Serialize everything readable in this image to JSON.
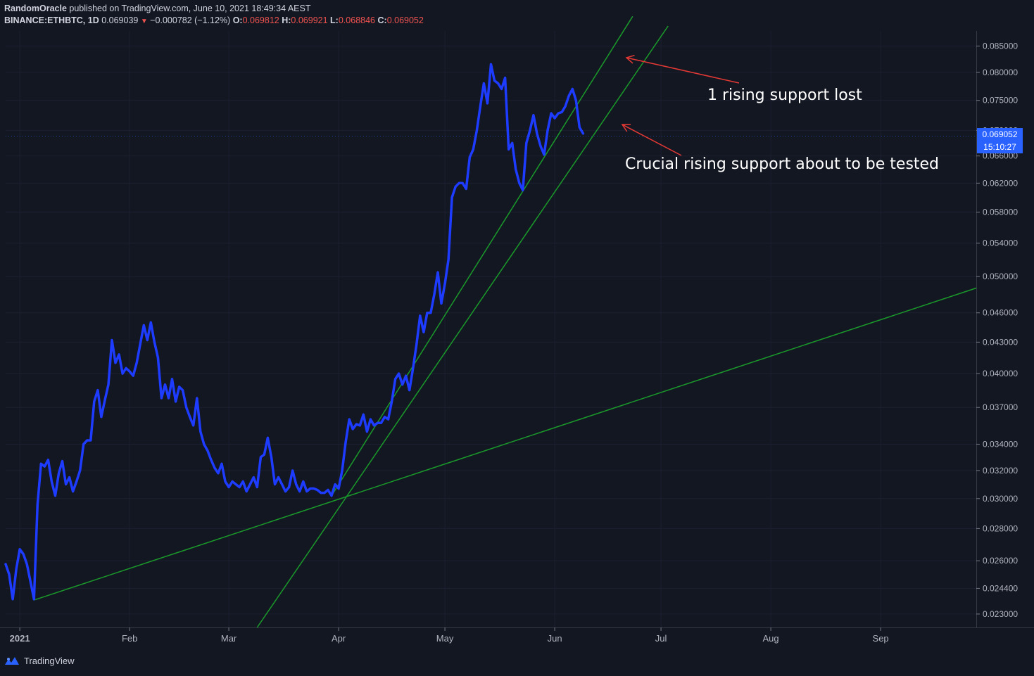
{
  "header": {
    "author": "RandomOracle",
    "published_text": "published on TradingView.com, June 10, 2021 18:49:34 AEST",
    "symbol": "BINANCE:ETHBTC, 1D",
    "last": "0.069039",
    "change": "−0.000782 (−1.12%)",
    "o_label": "O:",
    "o_val": "0.069812",
    "h_label": "H:",
    "h_val": "0.069921",
    "l_label": "L:",
    "l_val": "0.068846",
    "c_label": "C:",
    "c_val": "0.069052"
  },
  "price_tag": {
    "price": "0.069052",
    "countdown": "15:10:27"
  },
  "footer": {
    "brand": "TradingView"
  },
  "annotations": [
    {
      "text": "1 rising support lost"
    },
    {
      "text": "Crucial rising support about to be tested"
    }
  ],
  "colors": {
    "background": "#131722",
    "line": "#1e3cff",
    "trendline": "#1a9a2a",
    "arrow": "#e53935",
    "price_tag": "#2962ff"
  },
  "chart_data": {
    "type": "line",
    "title": "",
    "scale": "log",
    "x_ticks": [
      "2021",
      "Feb",
      "Mar",
      "Apr",
      "May",
      "Jun",
      "Jul",
      "Aug",
      "Sep"
    ],
    "y_ticks": [
      "0.085000",
      "0.080000",
      "0.075000",
      "0.070000",
      "0.066000",
      "0.062000",
      "0.058000",
      "0.054000",
      "0.050000",
      "0.046000",
      "0.043000",
      "0.040000",
      "0.037000",
      "0.034000",
      "0.032000",
      "0.030000",
      "0.028000",
      "0.026000",
      "0.024400",
      "0.023000"
    ],
    "ylim": [
      0.0223,
      0.088
    ],
    "xlim": [
      "2020-12-28",
      "2021-09-28"
    ],
    "series": [
      {
        "values": [
          [
            "2020-12-28",
            0.0258
          ],
          [
            "2020-12-29",
            0.0252
          ],
          [
            "2020-12-30",
            0.0238
          ],
          [
            "2020-12-31",
            0.0255
          ],
          [
            "2021-01-01",
            0.0267
          ],
          [
            "2021-01-02",
            0.0264
          ],
          [
            "2021-01-03",
            0.0258
          ],
          [
            "2021-01-04",
            0.0248
          ],
          [
            "2021-01-05",
            0.0238
          ],
          [
            "2021-01-06",
            0.0296
          ],
          [
            "2021-01-07",
            0.0325
          ],
          [
            "2021-01-08",
            0.0323
          ],
          [
            "2021-01-09",
            0.0328
          ],
          [
            "2021-01-10",
            0.0312
          ],
          [
            "2021-01-11",
            0.0302
          ],
          [
            "2021-01-12",
            0.0318
          ],
          [
            "2021-01-13",
            0.0327
          ],
          [
            "2021-01-14",
            0.031
          ],
          [
            "2021-01-15",
            0.0315
          ],
          [
            "2021-01-16",
            0.0305
          ],
          [
            "2021-01-17",
            0.0312
          ],
          [
            "2021-01-18",
            0.032
          ],
          [
            "2021-01-19",
            0.034
          ],
          [
            "2021-01-20",
            0.0343
          ],
          [
            "2021-01-21",
            0.0343
          ],
          [
            "2021-01-22",
            0.0375
          ],
          [
            "2021-01-23",
            0.0385
          ],
          [
            "2021-01-24",
            0.0362
          ],
          [
            "2021-01-25",
            0.0376
          ],
          [
            "2021-01-26",
            0.039
          ],
          [
            "2021-01-27",
            0.0432
          ],
          [
            "2021-01-28",
            0.041
          ],
          [
            "2021-01-29",
            0.0418
          ],
          [
            "2021-01-30",
            0.04
          ],
          [
            "2021-01-31",
            0.0405
          ],
          [
            "2021-02-01",
            0.0402
          ],
          [
            "2021-02-02",
            0.0398
          ],
          [
            "2021-02-03",
            0.041
          ],
          [
            "2021-02-04",
            0.0428
          ],
          [
            "2021-02-05",
            0.0447
          ],
          [
            "2021-02-06",
            0.0432
          ],
          [
            "2021-02-07",
            0.045
          ],
          [
            "2021-02-08",
            0.043
          ],
          [
            "2021-02-09",
            0.0415
          ],
          [
            "2021-02-10",
            0.0378
          ],
          [
            "2021-02-11",
            0.039
          ],
          [
            "2021-02-12",
            0.0378
          ],
          [
            "2021-02-13",
            0.0395
          ],
          [
            "2021-02-14",
            0.0375
          ],
          [
            "2021-02-15",
            0.0388
          ],
          [
            "2021-02-16",
            0.0385
          ],
          [
            "2021-02-17",
            0.037
          ],
          [
            "2021-02-18",
            0.0362
          ],
          [
            "2021-02-19",
            0.0355
          ],
          [
            "2021-02-20",
            0.0378
          ],
          [
            "2021-02-21",
            0.035
          ],
          [
            "2021-02-22",
            0.034
          ],
          [
            "2021-02-23",
            0.0335
          ],
          [
            "2021-02-24",
            0.0328
          ],
          [
            "2021-02-25",
            0.0322
          ],
          [
            "2021-02-26",
            0.0318
          ],
          [
            "2021-02-27",
            0.0325
          ],
          [
            "2021-02-28",
            0.0312
          ],
          [
            "2021-03-01",
            0.0308
          ],
          [
            "2021-03-02",
            0.0312
          ],
          [
            "2021-03-03",
            0.031
          ],
          [
            "2021-03-04",
            0.0308
          ],
          [
            "2021-03-05",
            0.0312
          ],
          [
            "2021-03-06",
            0.0305
          ],
          [
            "2021-03-07",
            0.031
          ],
          [
            "2021-03-08",
            0.0315
          ],
          [
            "2021-03-09",
            0.0308
          ],
          [
            "2021-03-10",
            0.033
          ],
          [
            "2021-03-11",
            0.0332
          ],
          [
            "2021-03-12",
            0.0345
          ],
          [
            "2021-03-13",
            0.033
          ],
          [
            "2021-03-14",
            0.031
          ],
          [
            "2021-03-15",
            0.0315
          ],
          [
            "2021-03-16",
            0.031
          ],
          [
            "2021-03-17",
            0.0305
          ],
          [
            "2021-03-18",
            0.0308
          ],
          [
            "2021-03-19",
            0.032
          ],
          [
            "2021-03-20",
            0.031
          ],
          [
            "2021-03-21",
            0.0305
          ],
          [
            "2021-03-22",
            0.0312
          ],
          [
            "2021-03-23",
            0.0305
          ],
          [
            "2021-03-24",
            0.0307
          ],
          [
            "2021-03-25",
            0.0307
          ],
          [
            "2021-03-26",
            0.0306
          ],
          [
            "2021-03-27",
            0.0304
          ],
          [
            "2021-03-28",
            0.0304
          ],
          [
            "2021-03-29",
            0.0306
          ],
          [
            "2021-03-30",
            0.0302
          ],
          [
            "2021-03-31",
            0.031
          ],
          [
            "2021-04-01",
            0.0307
          ],
          [
            "2021-04-02",
            0.032
          ],
          [
            "2021-04-03",
            0.0342
          ],
          [
            "2021-04-04",
            0.036
          ],
          [
            "2021-04-05",
            0.0352
          ],
          [
            "2021-04-06",
            0.0356
          ],
          [
            "2021-04-07",
            0.0355
          ],
          [
            "2021-04-08",
            0.0364
          ],
          [
            "2021-04-09",
            0.035
          ],
          [
            "2021-04-10",
            0.036
          ],
          [
            "2021-04-11",
            0.0355
          ],
          [
            "2021-04-12",
            0.0357
          ],
          [
            "2021-04-13",
            0.0357
          ],
          [
            "2021-04-14",
            0.0362
          ],
          [
            "2021-04-15",
            0.036
          ],
          [
            "2021-04-16",
            0.0375
          ],
          [
            "2021-04-17",
            0.0395
          ],
          [
            "2021-04-18",
            0.04
          ],
          [
            "2021-04-19",
            0.039
          ],
          [
            "2021-04-20",
            0.0398
          ],
          [
            "2021-04-21",
            0.0385
          ],
          [
            "2021-04-22",
            0.0405
          ],
          [
            "2021-04-23",
            0.0428
          ],
          [
            "2021-04-24",
            0.0457
          ],
          [
            "2021-04-25",
            0.044
          ],
          [
            "2021-04-26",
            0.046
          ],
          [
            "2021-04-27",
            0.046
          ],
          [
            "2021-04-28",
            0.048
          ],
          [
            "2021-04-29",
            0.0505
          ],
          [
            "2021-04-30",
            0.047
          ],
          [
            "2021-05-01",
            0.0492
          ],
          [
            "2021-05-02",
            0.052
          ],
          [
            "2021-05-03",
            0.06
          ],
          [
            "2021-05-04",
            0.0615
          ],
          [
            "2021-05-05",
            0.062
          ],
          [
            "2021-05-06",
            0.062
          ],
          [
            "2021-05-07",
            0.0612
          ],
          [
            "2021-05-08",
            0.0658
          ],
          [
            "2021-05-09",
            0.067
          ],
          [
            "2021-05-10",
            0.07
          ],
          [
            "2021-05-11",
            0.074
          ],
          [
            "2021-05-12",
            0.078
          ],
          [
            "2021-05-13",
            0.0745
          ],
          [
            "2021-05-14",
            0.0815
          ],
          [
            "2021-05-15",
            0.0785
          ],
          [
            "2021-05-16",
            0.078
          ],
          [
            "2021-05-17",
            0.077
          ],
          [
            "2021-05-18",
            0.079
          ],
          [
            "2021-05-19",
            0.067
          ],
          [
            "2021-05-20",
            0.068
          ],
          [
            "2021-05-21",
            0.064
          ],
          [
            "2021-05-22",
            0.062
          ],
          [
            "2021-05-23",
            0.061
          ],
          [
            "2021-05-24",
            0.068
          ],
          [
            "2021-05-25",
            0.07
          ],
          [
            "2021-05-26",
            0.0725
          ],
          [
            "2021-05-27",
            0.0695
          ],
          [
            "2021-05-28",
            0.0675
          ],
          [
            "2021-05-29",
            0.0662
          ],
          [
            "2021-05-30",
            0.07
          ],
          [
            "2021-05-31",
            0.0728
          ],
          [
            "2021-06-01",
            0.072
          ],
          [
            "2021-06-02",
            0.0728
          ],
          [
            "2021-06-03",
            0.073
          ],
          [
            "2021-06-04",
            0.074
          ],
          [
            "2021-06-05",
            0.0758
          ],
          [
            "2021-06-06",
            0.077
          ],
          [
            "2021-06-07",
            0.075
          ],
          [
            "2021-06-08",
            0.0705
          ],
          [
            "2021-06-09",
            0.0695
          ]
        ]
      }
    ],
    "trendlines": [
      {
        "from": [
          "2021-01-05",
          0.02375
        ],
        "to": [
          "2021-09-28",
          0.0487
        ]
      },
      {
        "from": [
          "2021-03-30",
          0.0302
        ],
        "to": [
          "2021-06-23",
          0.091
        ]
      },
      {
        "from": [
          "2021-03-09",
          0.0223
        ],
        "to": [
          "2021-07-03",
          0.089
        ]
      }
    ],
    "last_price": 0.069052
  }
}
